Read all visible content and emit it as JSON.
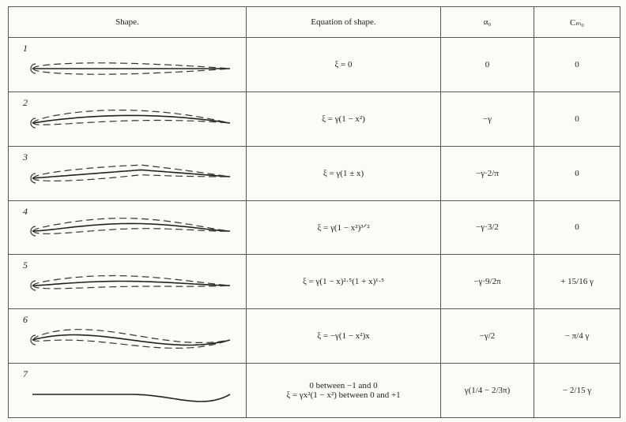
{
  "table": {
    "headers": [
      "Shape.",
      "Equation of shape.",
      "α₀",
      "Cₘ₀"
    ],
    "rows": [
      {
        "number": "1",
        "equation": [
          "ξ = 0"
        ],
        "alpha": "0",
        "cm": "0"
      },
      {
        "number": "2",
        "equation": [
          "ξ = γ(1 − x²)"
        ],
        "alpha": "−γ",
        "cm": "0"
      },
      {
        "number": "3",
        "equation": [
          "ξ = γ(1 ± x)"
        ],
        "alpha": "−γ·2/π",
        "cm": "0"
      },
      {
        "number": "4",
        "equation": [
          "ξ = γ(1 − x²)³ᐟ²"
        ],
        "alpha": "−γ·3/2",
        "cm": "0"
      },
      {
        "number": "5",
        "equation": [
          "ξ = γ(1 − x)²·⁵(1 + x)¹·⁵"
        ],
        "alpha": "−γ·9/2π",
        "cm": "+ 15/16 γ"
      },
      {
        "number": "6",
        "equation": [
          "ξ = −γ(1 − x²)x"
        ],
        "alpha": "−γ/2",
        "cm": "− π/4 γ"
      },
      {
        "number": "7",
        "equation": [
          "0 between −1 and 0",
          "ξ = γx²(1 − x²) between 0 and +1"
        ],
        "alpha": "γ(1/4 − 2/3π)",
        "cm": "− 2/15 γ"
      }
    ]
  }
}
